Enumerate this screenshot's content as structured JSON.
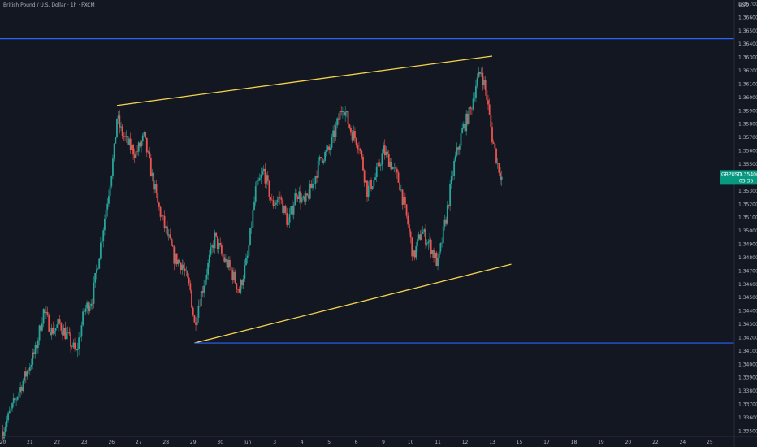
{
  "header": {
    "title": "British Pound / U.S. Dollar · 1h · FXCM",
    "currency": "USD"
  },
  "price_badge": {
    "symbol": "GBPUSD",
    "price": "1.35400",
    "countdown": "05:35",
    "color": "#089981"
  },
  "colors": {
    "background": "#131722",
    "up": "#26a69a",
    "down": "#ef5350",
    "trendline": "#f5d44b",
    "level": "#2962ff",
    "axis_text": "#b2b5be"
  },
  "chart_data": {
    "type": "candlestick",
    "title": "British Pound / U.S. Dollar · 1h · FXCM",
    "ylim": [
      1.3346,
      1.3673
    ],
    "yticks": [
      1.367,
      1.366,
      1.365,
      1.364,
      1.363,
      1.362,
      1.361,
      1.36,
      1.359,
      1.358,
      1.357,
      1.356,
      1.355,
      1.354,
      1.353,
      1.352,
      1.351,
      1.35,
      1.349,
      1.348,
      1.347,
      1.346,
      1.345,
      1.344,
      1.343,
      1.342,
      1.341,
      1.34,
      1.339,
      1.338,
      1.337,
      1.336,
      1.335
    ],
    "ytick_labels": [
      "1.36700",
      "1.36600",
      "1.36500",
      "1.36400",
      "1.36300",
      "1.36200",
      "1.36100",
      "1.36000",
      "1.35900",
      "1.35800",
      "1.35700",
      "1.35600",
      "1.35500",
      "1.35400",
      "1.35300",
      "1.35200",
      "1.35100",
      "1.35000",
      "1.34900",
      "1.34800",
      "1.34700",
      "1.34600",
      "1.34500",
      "1.34400",
      "1.34300",
      "1.34200",
      "1.34100",
      "1.34000",
      "1.33900",
      "1.33800",
      "1.33700",
      "1.33600",
      "1.33500"
    ],
    "x_labels": [
      "20",
      "21",
      "22",
      "23",
      "26",
      "27",
      "28",
      "29",
      "30",
      "Jun",
      "3",
      "4",
      "5",
      "6",
      "9",
      "10",
      "11",
      "12",
      "13",
      "15",
      "17",
      "18",
      "19",
      "20",
      "22",
      "24",
      "25"
    ],
    "x_label_day": [
      0,
      1,
      2,
      3,
      4,
      5,
      6,
      7,
      8,
      9,
      10,
      11,
      12,
      13,
      14,
      15,
      16,
      17,
      18,
      19,
      20,
      21,
      22,
      23,
      24,
      25,
      26
    ],
    "x_domain": [
      -0.1,
      26.9
    ],
    "close_path": [
      [
        0.0,
        1.335
      ],
      [
        0.3,
        1.3365
      ],
      [
        0.6,
        1.338
      ],
      [
        0.9,
        1.3395
      ],
      [
        1.2,
        1.341
      ],
      [
        1.5,
        1.344
      ],
      [
        1.8,
        1.3425
      ],
      [
        2.1,
        1.343
      ],
      [
        2.4,
        1.342
      ],
      [
        2.7,
        1.3408
      ],
      [
        3.0,
        1.344
      ],
      [
        3.3,
        1.345
      ],
      [
        3.6,
        1.349
      ],
      [
        3.9,
        1.353
      ],
      [
        4.1,
        1.356
      ],
      [
        4.2,
        1.3585
      ],
      [
        4.35,
        1.3575
      ],
      [
        4.6,
        1.3565
      ],
      [
        4.9,
        1.3558
      ],
      [
        5.2,
        1.357
      ],
      [
        5.4,
        1.355
      ],
      [
        5.7,
        1.352
      ],
      [
        6.0,
        1.35
      ],
      [
        6.3,
        1.348
      ],
      [
        6.6,
        1.3475
      ],
      [
        6.9,
        1.3455
      ],
      [
        7.05,
        1.343
      ],
      [
        7.2,
        1.3445
      ],
      [
        7.5,
        1.347
      ],
      [
        7.8,
        1.3495
      ],
      [
        8.1,
        1.348
      ],
      [
        8.4,
        1.347
      ],
      [
        8.7,
        1.3455
      ],
      [
        9.0,
        1.348
      ],
      [
        9.3,
        1.353
      ],
      [
        9.6,
        1.3545
      ],
      [
        9.9,
        1.352
      ],
      [
        10.2,
        1.3525
      ],
      [
        10.5,
        1.3505
      ],
      [
        10.8,
        1.353
      ],
      [
        11.1,
        1.352
      ],
      [
        11.4,
        1.3535
      ],
      [
        11.7,
        1.3555
      ],
      [
        12.0,
        1.356
      ],
      [
        12.3,
        1.358
      ],
      [
        12.5,
        1.3595
      ],
      [
        12.8,
        1.3575
      ],
      [
        13.1,
        1.3565
      ],
      [
        13.4,
        1.353
      ],
      [
        13.7,
        1.354
      ],
      [
        14.0,
        1.356
      ],
      [
        14.3,
        1.355
      ],
      [
        14.6,
        1.3535
      ],
      [
        14.9,
        1.3505
      ],
      [
        15.1,
        1.348
      ],
      [
        15.4,
        1.35
      ],
      [
        15.7,
        1.349
      ],
      [
        16.0,
        1.3475
      ],
      [
        16.3,
        1.351
      ],
      [
        16.6,
        1.355
      ],
      [
        16.9,
        1.3575
      ],
      [
        17.2,
        1.359
      ],
      [
        17.4,
        1.361
      ],
      [
        17.6,
        1.362
      ],
      [
        17.8,
        1.36
      ],
      [
        18.0,
        1.357
      ],
      [
        18.2,
        1.355
      ],
      [
        18.35,
        1.354
      ]
    ],
    "trendlines": [
      {
        "name": "channel-upper",
        "from": [
          4.2,
          1.3594
        ],
        "to": [
          18.0,
          1.3631
        ]
      },
      {
        "name": "channel-lower",
        "from": [
          7.05,
          1.3416
        ],
        "to": [
          18.7,
          1.3475
        ]
      },
      {
        "name": "support-level-start",
        "from": [
          7.05,
          1.3416
        ],
        "to": [
          26.9,
          1.3416
        ]
      }
    ],
    "horizontal_levels": [
      1.3644,
      1.3416
    ],
    "last_price": 1.354
  }
}
